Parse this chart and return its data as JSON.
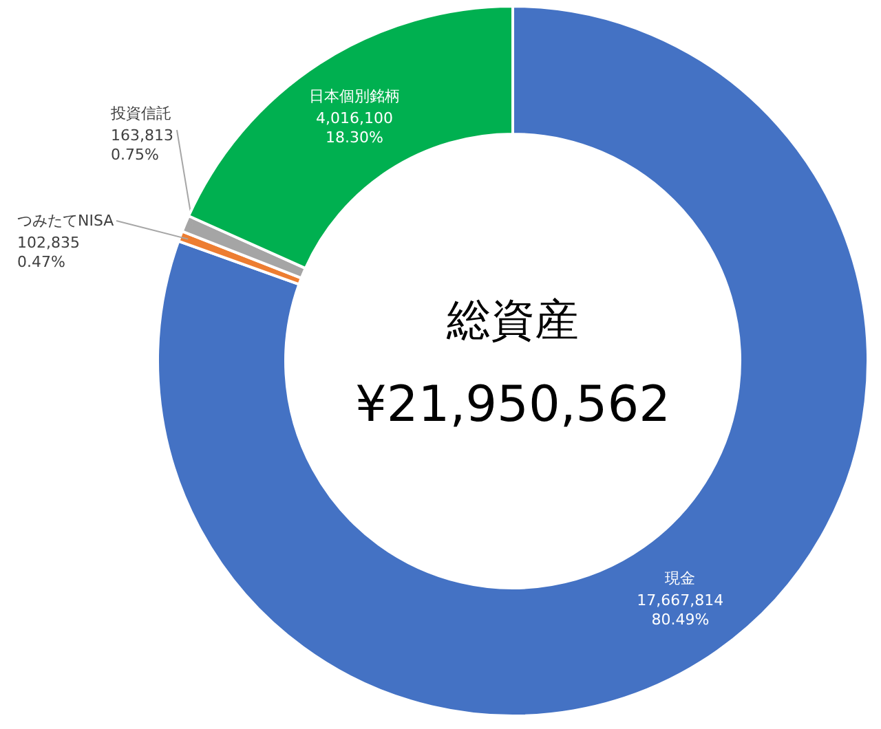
{
  "chart_data": {
    "type": "donut",
    "categories": [
      "現金",
      "つみたてNISA",
      "投資信託",
      "日本個別銘柄"
    ],
    "values": [
      17667814,
      102835,
      163813,
      4016100
    ],
    "colors": [
      "#4472c4",
      "#ed7d31",
      "#a5a5a5",
      "#00b050"
    ],
    "value_labels": [
      "17,667,814\n80.49%",
      "102,835\n0.47%",
      "163,813\n0.75%",
      "4,016,100\n18.30%"
    ],
    "annotations": [
      "総資産",
      "¥21,950,562"
    ]
  }
}
